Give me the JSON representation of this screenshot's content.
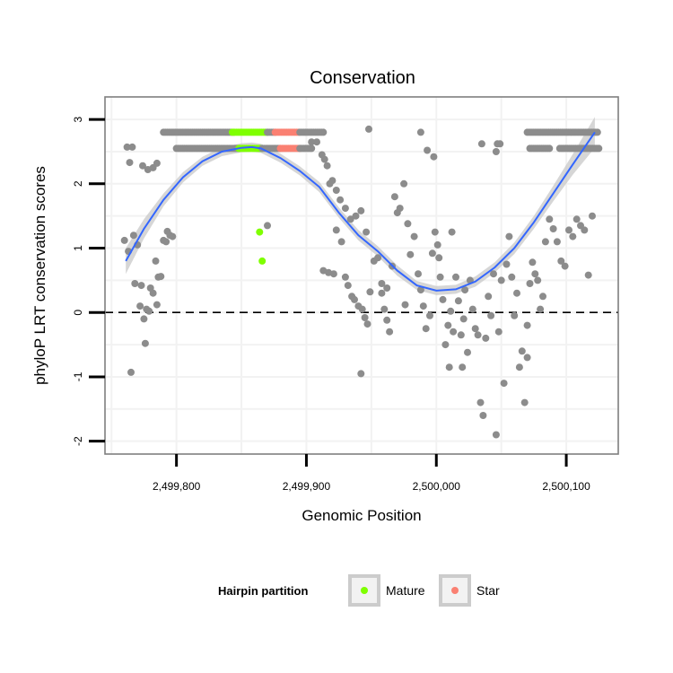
{
  "chart_data": {
    "type": "scatter",
    "title": "Conservation",
    "xlabel": "Genomic Position",
    "ylabel": "phyloP LRT conservation scores",
    "xlim": [
      2499745,
      2500140
    ],
    "ylim": [
      -2.2,
      3.35
    ],
    "x_ticks": [
      2499800,
      2499900,
      2500000,
      2500100
    ],
    "x_tick_labels": [
      "2,499,800",
      "2,499,900",
      "2,500,000",
      "2,500,100"
    ],
    "y_ticks": [
      -2,
      -1,
      0,
      1,
      2,
      3
    ],
    "y_tick_labels": [
      "-2",
      "-1",
      "0",
      "1",
      "2",
      "3"
    ],
    "reference_line": {
      "y": 0,
      "style": "dashed"
    },
    "grid": true,
    "colors": {
      "points": "#8c8c8c",
      "mature": "#7fff00",
      "star": "#fa8072",
      "smooth": "#3366ff",
      "band": "#c8c8c8",
      "panel_border": "#7f7f7f",
      "grid": "#f2f2f2"
    },
    "legend": {
      "title": "Hairpin partition",
      "position": "bottom",
      "entries": [
        {
          "label": "Mature",
          "color": "#7fff00"
        },
        {
          "label": "Star",
          "color": "#fa8072"
        }
      ]
    },
    "smooth_line": {
      "x": [
        2499761,
        2499775,
        2499790,
        2499805,
        2499820,
        2499835,
        2499850,
        2499858,
        2499865,
        2499880,
        2499895,
        2499910,
        2499925,
        2499940,
        2499955,
        2499970,
        2499985,
        2500000,
        2500015,
        2500030,
        2500045,
        2500060,
        2500075,
        2500090,
        2500105,
        2500122
      ],
      "y": [
        0.8,
        1.3,
        1.75,
        2.1,
        2.35,
        2.5,
        2.56,
        2.57,
        2.55,
        2.4,
        2.2,
        1.95,
        1.55,
        1.2,
        0.95,
        0.65,
        0.42,
        0.34,
        0.36,
        0.48,
        0.7,
        1.0,
        1.4,
        1.85,
        2.3,
        2.8
      ],
      "se": [
        0.2,
        0.15,
        0.1,
        0.08,
        0.07,
        0.07,
        0.07,
        0.07,
        0.07,
        0.07,
        0.07,
        0.08,
        0.08,
        0.08,
        0.08,
        0.08,
        0.07,
        0.07,
        0.07,
        0.08,
        0.08,
        0.09,
        0.1,
        0.12,
        0.16,
        0.24
      ]
    },
    "series": [
      {
        "name": "Other",
        "points": [
          [
            2499762,
            2.57
          ],
          [
            2499766,
            2.57
          ],
          [
            2499764,
            2.33
          ],
          [
            2499774,
            2.28
          ],
          [
            2499778,
            2.22
          ],
          [
            2499782,
            2.25
          ],
          [
            2499785,
            2.32
          ],
          [
            2499760,
            1.12
          ],
          [
            2499763,
            0.95
          ],
          [
            2499767,
            1.2
          ],
          [
            2499770,
            1.05
          ],
          [
            2499773,
            0.42
          ],
          [
            2499768,
            0.45
          ],
          [
            2499772,
            0.1
          ],
          [
            2499775,
            -0.1
          ],
          [
            2499777,
            0.05
          ],
          [
            2499776,
            -0.48
          ],
          [
            2499765,
            -0.93
          ],
          [
            2499780,
            0.38
          ],
          [
            2499782,
            0.3
          ],
          [
            2499785,
            0.12
          ],
          [
            2499786,
            0.55
          ],
          [
            2499788,
            0.56
          ],
          [
            2499790,
            1.12
          ],
          [
            2499792,
            1.1
          ],
          [
            2499793,
            1.26
          ],
          [
            2499795,
            1.2
          ],
          [
            2499784,
            0.8
          ],
          [
            2499779,
            0.02
          ],
          [
            2499797,
            1.18
          ],
          [
            2499870,
            1.35
          ],
          [
            2499904,
            2.65
          ],
          [
            2499908,
            2.65
          ],
          [
            2499912,
            2.45
          ],
          [
            2499914,
            2.38
          ],
          [
            2499916,
            2.28
          ],
          [
            2499918,
            2.0
          ],
          [
            2499920,
            2.05
          ],
          [
            2499923,
            1.9
          ],
          [
            2499926,
            1.75
          ],
          [
            2499930,
            1.62
          ],
          [
            2499934,
            1.45
          ],
          [
            2499938,
            1.5
          ],
          [
            2499942,
            1.58
          ],
          [
            2499946,
            1.25
          ],
          [
            2499913,
            0.65
          ],
          [
            2499917,
            0.62
          ],
          [
            2499921,
            0.6
          ],
          [
            2499923,
            1.28
          ],
          [
            2499927,
            1.1
          ],
          [
            2499930,
            0.55
          ],
          [
            2499932,
            0.42
          ],
          [
            2499935,
            0.25
          ],
          [
            2499937,
            0.2
          ],
          [
            2499940,
            0.1
          ],
          [
            2499943,
            0.05
          ],
          [
            2499945,
            -0.08
          ],
          [
            2499947,
            -0.18
          ],
          [
            2499949,
            0.32
          ],
          [
            2499952,
            0.8
          ],
          [
            2499955,
            0.85
          ],
          [
            2499958,
            0.3
          ],
          [
            2499960,
            0.05
          ],
          [
            2499962,
            -0.12
          ],
          [
            2499964,
            -0.3
          ],
          [
            2499966,
            0.72
          ],
          [
            2499968,
            1.8
          ],
          [
            2499970,
            1.55
          ],
          [
            2499972,
            1.62
          ],
          [
            2499975,
            2.0
          ],
          [
            2499978,
            1.38
          ],
          [
            2499980,
            0.9
          ],
          [
            2499983,
            1.18
          ],
          [
            2499986,
            0.6
          ],
          [
            2499988,
            0.35
          ],
          [
            2499990,
            0.1
          ],
          [
            2499992,
            -0.25
          ],
          [
            2499995,
            -0.05
          ],
          [
            2499997,
            0.92
          ],
          [
            2499999,
            1.25
          ],
          [
            2500001,
            1.05
          ],
          [
            2500003,
            0.55
          ],
          [
            2500005,
            0.2
          ],
          [
            2500007,
            -0.5
          ],
          [
            2500009,
            -0.2
          ],
          [
            2500011,
            0.02
          ],
          [
            2500013,
            -0.3
          ],
          [
            2500015,
            0.55
          ],
          [
            2500017,
            0.18
          ],
          [
            2500019,
            -0.35
          ],
          [
            2500021,
            -0.1
          ],
          [
            2500024,
            -0.62
          ],
          [
            2500026,
            0.5
          ],
          [
            2500028,
            0.05
          ],
          [
            2500030,
            -0.25
          ],
          [
            2500032,
            -0.35
          ],
          [
            2500034,
            -1.4
          ],
          [
            2500036,
            -1.6
          ],
          [
            2500038,
            -0.4
          ],
          [
            2500040,
            0.25
          ],
          [
            2500042,
            -0.05
          ],
          [
            2500046,
            -1.9
          ],
          [
            2500048,
            -0.3
          ],
          [
            2500050,
            0.5
          ],
          [
            2500052,
            -1.1
          ],
          [
            2500054,
            0.75
          ],
          [
            2500056,
            1.18
          ],
          [
            2500058,
            0.55
          ],
          [
            2500060,
            -0.05
          ],
          [
            2500062,
            0.3
          ],
          [
            2500064,
            -0.85
          ],
          [
            2500066,
            -0.6
          ],
          [
            2500068,
            -1.4
          ],
          [
            2500070,
            -0.2
          ],
          [
            2500072,
            0.45
          ],
          [
            2500074,
            0.78
          ],
          [
            2500076,
            0.6
          ],
          [
            2500078,
            0.5
          ],
          [
            2500080,
            0.05
          ],
          [
            2500082,
            0.25
          ],
          [
            2500084,
            1.1
          ],
          [
            2500087,
            1.45
          ],
          [
            2500090,
            1.3
          ],
          [
            2500093,
            1.1
          ],
          [
            2500096,
            0.8
          ],
          [
            2500099,
            0.72
          ],
          [
            2500102,
            1.28
          ],
          [
            2500105,
            1.18
          ],
          [
            2500108,
            1.45
          ],
          [
            2500111,
            1.35
          ],
          [
            2500114,
            1.28
          ],
          [
            2500117,
            0.58
          ],
          [
            2500120,
            1.5
          ],
          [
            2500047,
            2.62
          ],
          [
            2500049,
            2.62
          ],
          [
            2499988,
            2.8
          ],
          [
            2499993,
            2.52
          ],
          [
            2499998,
            2.42
          ],
          [
            2500035,
            2.62
          ],
          [
            2500046,
            2.5
          ],
          [
            2499948,
            2.85
          ],
          [
            2499942,
            -0.95
          ],
          [
            2499958,
            0.45
          ],
          [
            2499962,
            0.38
          ],
          [
            2499976,
            0.12
          ],
          [
            2500002,
            0.85
          ],
          [
            2500012,
            1.25
          ],
          [
            2500022,
            0.35
          ],
          [
            2500044,
            0.6
          ],
          [
            2500070,
            -0.7
          ],
          [
            2500010,
            -0.85
          ],
          [
            2500020,
            -0.85
          ]
        ]
      },
      {
        "name": "Mature",
        "points": [
          [
            2499864,
            1.25
          ],
          [
            2499866,
            0.8
          ]
        ]
      }
    ],
    "clusters": [
      {
        "name": "Other",
        "y": 2.8,
        "x_from": 2499790,
        "x_to": 2499845
      },
      {
        "name": "Mature",
        "y": 2.8,
        "x_from": 2499843,
        "x_to": 2499870
      },
      {
        "name": "Other",
        "y": 2.8,
        "x_from": 2499870,
        "x_to": 2499876
      },
      {
        "name": "Star",
        "y": 2.8,
        "x_from": 2499876,
        "x_to": 2499895
      },
      {
        "name": "Other",
        "y": 2.8,
        "x_from": 2499895,
        "x_to": 2499913
      },
      {
        "name": "Other",
        "y": 2.55,
        "x_from": 2499800,
        "x_to": 2499848
      },
      {
        "name": "Mature",
        "y": 2.55,
        "x_from": 2499848,
        "x_to": 2499866
      },
      {
        "name": "Other",
        "y": 2.55,
        "x_from": 2499866,
        "x_to": 2499880
      },
      {
        "name": "Star",
        "y": 2.55,
        "x_from": 2499880,
        "x_to": 2499895
      },
      {
        "name": "Other",
        "y": 2.55,
        "x_from": 2499895,
        "x_to": 2499905
      },
      {
        "name": "Other",
        "y": 2.8,
        "x_from": 2500070,
        "x_to": 2500125
      },
      {
        "name": "Other",
        "y": 2.55,
        "x_from": 2500072,
        "x_to": 2500088
      },
      {
        "name": "Other",
        "y": 2.55,
        "x_from": 2500095,
        "x_to": 2500125
      }
    ]
  }
}
